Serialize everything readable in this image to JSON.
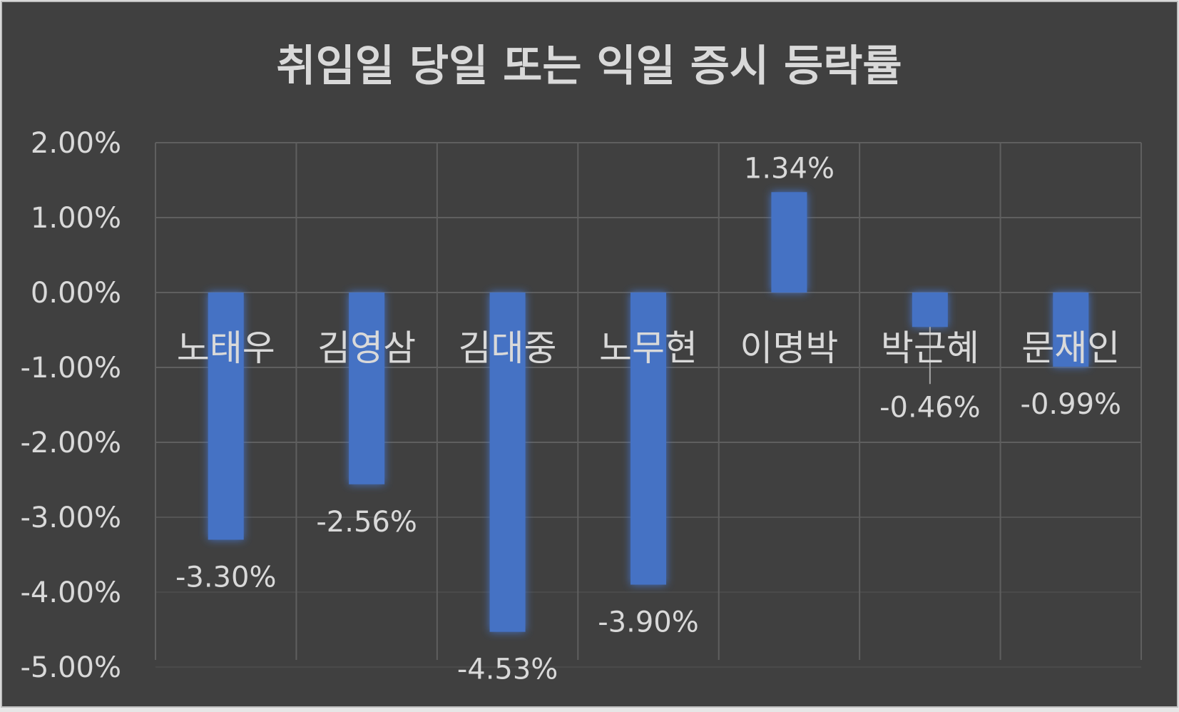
{
  "chart_data": {
    "type": "bar",
    "title": "취임일 당일 또는 익일 증시 등락률",
    "xlabel": "",
    "ylabel": "",
    "categories": [
      "노태우",
      "김영삼",
      "김대중",
      "노무현",
      "이명박",
      "박근혜",
      "문재인"
    ],
    "values": [
      -3.3,
      -2.56,
      -4.53,
      -3.9,
      1.34,
      -0.46,
      -0.99
    ],
    "data_labels": [
      "-3.30%",
      "-2.56%",
      "-4.53%",
      "-3.90%",
      "1.34%",
      "-0.46%",
      "-0.99%"
    ],
    "ylim": [
      -5,
      2
    ],
    "yticks": [
      2,
      1,
      0,
      -1,
      -2,
      -3,
      -4,
      -5
    ],
    "ytick_labels": [
      "2.00%",
      "1.00%",
      "0.00%",
      "-1.00%",
      "-2.00%",
      "-3.00%",
      "-4.00%",
      "-5.00%"
    ],
    "grid": true,
    "legend": "none",
    "colors": {
      "background": "#404040",
      "bar": "#4472c4",
      "bar_glow": "#4a7fe0",
      "grid": "#5f5f5f",
      "text": "#d9d9d9",
      "border": "#bfbfbf"
    }
  }
}
